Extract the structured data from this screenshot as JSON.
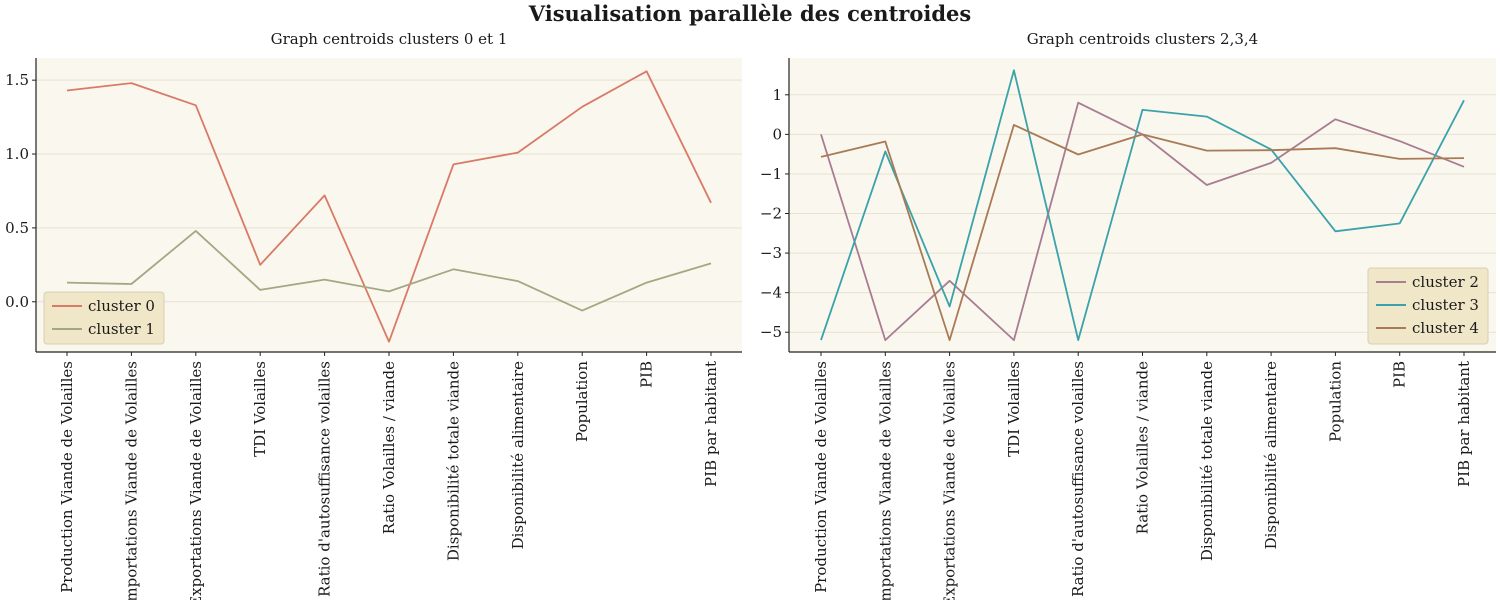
{
  "figure": {
    "title": "Visualisation parallèle des centroides"
  },
  "colors": {
    "background": "#faf7ee",
    "grid": "#e7e1d2",
    "legend_bg": "#f0e6c8"
  },
  "chart_data": [
    {
      "type": "line",
      "title": "Graph centroids clusters 0 et 1",
      "xlabel": "",
      "ylabel": "",
      "categories": [
        "Production Viande de Volailles",
        "Importations Viande de Volailles",
        "Exportations Viande de Volailles",
        "TDI Volailles",
        "Ratio d'autosuffisance volailles",
        "Ratio Volailles / viande",
        "Disponibilité totale viande",
        "Disponibilité alimentaire",
        "Population",
        "PIB",
        "PIB par habitant"
      ],
      "ylim": [
        -0.34,
        1.65
      ],
      "yticks": [
        0.0,
        0.5,
        1.0,
        1.5
      ],
      "ytick_labels": [
        "0.0",
        "0.5",
        "1.0",
        "1.5"
      ],
      "grid": true,
      "legend": "lower-left",
      "series": [
        {
          "name": "cluster 0",
          "color": "#d97a66",
          "values": [
            1.43,
            1.48,
            1.33,
            0.25,
            0.72,
            -0.27,
            0.93,
            1.01,
            1.32,
            1.56,
            0.67
          ]
        },
        {
          "name": "cluster 1",
          "color": "#a3a883",
          "values": [
            0.13,
            0.12,
            0.48,
            0.08,
            0.15,
            0.07,
            0.22,
            0.14,
            -0.06,
            0.13,
            0.26
          ]
        }
      ]
    },
    {
      "type": "line",
      "title": "Graph centroids clusters 2,3,4",
      "xlabel": "",
      "ylabel": "",
      "categories": [
        "Production Viande de Volailles",
        "Importations Viande de Volailles",
        "Exportations Viande de Volailles",
        "TDI Volailles",
        "Ratio d'autosuffisance volailles",
        "Ratio Volailles / viande",
        "Disponibilité totale viande",
        "Disponibilité alimentaire",
        "Population",
        "PIB",
        "PIB par habitant"
      ],
      "ylim": [
        -5.5,
        1.93
      ],
      "yticks": [
        1,
        0,
        -1,
        -2,
        -3,
        -4,
        -5
      ],
      "ytick_labels": [
        "1",
        "0",
        "−1",
        "−2",
        "−3",
        "−4",
        "−5"
      ],
      "grid": true,
      "legend": "lower-right",
      "series": [
        {
          "name": "cluster 2",
          "color": "#a87c92",
          "values": [
            0.0,
            -5.2,
            -3.7,
            -5.2,
            0.8,
            0.0,
            -1.28,
            -0.72,
            0.38,
            -0.17,
            -0.82
          ]
        },
        {
          "name": "cluster 3",
          "color": "#3aa2aa",
          "values": [
            -5.2,
            -0.43,
            -4.35,
            1.62,
            -5.2,
            0.62,
            0.45,
            -0.38,
            -2.45,
            -2.25,
            0.86
          ]
        },
        {
          "name": "cluster 4",
          "color": "#a87a56",
          "values": [
            -0.57,
            -0.18,
            -5.2,
            0.24,
            -0.51,
            0.0,
            -0.41,
            -0.4,
            -0.35,
            -0.62,
            -0.6
          ]
        }
      ]
    }
  ]
}
